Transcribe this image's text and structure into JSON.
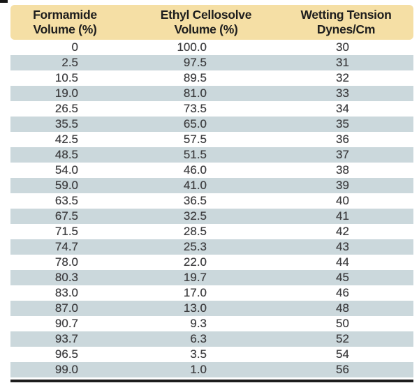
{
  "chart_data": {
    "type": "table",
    "title": "",
    "columns": [
      {
        "label": "Formamide Volume (%)",
        "line1": "Formamide",
        "line2": "Volume (%)"
      },
      {
        "label": "Ethyl Cellosolve Volume (%)",
        "line1": "Ethyl Cellosolve",
        "line2": "Volume (%)"
      },
      {
        "label": "Wetting Tension Dynes/Cm",
        "line1": "Wetting Tension",
        "line2": "Dynes/Cm"
      }
    ],
    "rows": [
      [
        "0",
        "100.0",
        "30"
      ],
      [
        "2.5",
        "97.5",
        "31"
      ],
      [
        "10.5",
        "89.5",
        "32"
      ],
      [
        "19.0",
        "81.0",
        "33"
      ],
      [
        "26.5",
        "73.5",
        "34"
      ],
      [
        "35.5",
        "65.0",
        "35"
      ],
      [
        "42.5",
        "57.5",
        "36"
      ],
      [
        "48.5",
        "51.5",
        "37"
      ],
      [
        "54.0",
        "46.0",
        "38"
      ],
      [
        "59.0",
        "41.0",
        "39"
      ],
      [
        "63.5",
        "36.5",
        "40"
      ],
      [
        "67.5",
        "32.5",
        "41"
      ],
      [
        "71.5",
        "28.5",
        "42"
      ],
      [
        "74.7",
        "25.3",
        "43"
      ],
      [
        "78.0",
        "22.0",
        "44"
      ],
      [
        "80.3",
        "19.7",
        "45"
      ],
      [
        "83.0",
        "17.0",
        "46"
      ],
      [
        "87.0",
        "13.0",
        "48"
      ],
      [
        "90.7",
        "9.3",
        "50"
      ],
      [
        "93.7",
        "6.3",
        "52"
      ],
      [
        "96.5",
        "3.5",
        "54"
      ],
      [
        "99.0",
        "1.0",
        "56"
      ]
    ],
    "layout": {
      "striping": "alternate rows shaded starting with second data row",
      "grid": false,
      "bottom_rule": true
    }
  },
  "colors": {
    "header_bg": "#f5dfa5",
    "stripe": "#cbd8dc",
    "data_text": "#3e3e40",
    "header_text": "#1d1d1d",
    "rule": "#1d1d1d"
  }
}
